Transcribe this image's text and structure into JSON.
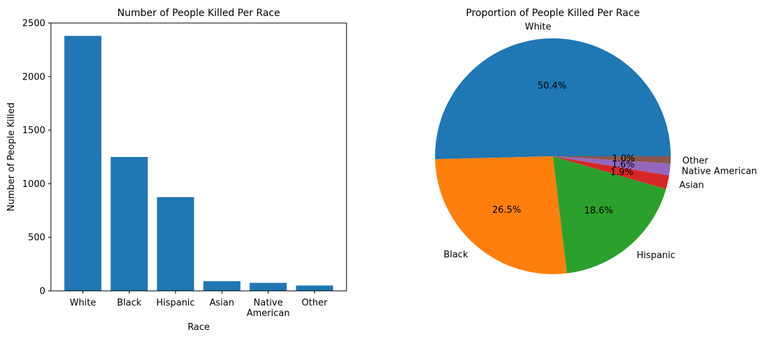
{
  "chart_data": [
    {
      "type": "bar",
      "title": "Number of People Killed Per Race",
      "xlabel": "Race",
      "ylabel": "Number of People Killed",
      "categories": [
        "White",
        "Black",
        "Hispanic",
        "Asian",
        "Native\nAmerican",
        "Other"
      ],
      "values": [
        2380,
        1250,
        875,
        90,
        75,
        50
      ],
      "ylim": [
        0,
        2500
      ],
      "yticks": [
        0,
        500,
        1000,
        1500,
        2000,
        2500
      ],
      "color": "#1f77b4",
      "grid": false
    },
    {
      "type": "pie",
      "title": "Proportion of People Killed Per Race",
      "labels": [
        "White",
        "Black",
        "Hispanic",
        "Asian",
        "Native American",
        "Other"
      ],
      "values": [
        50.4,
        26.5,
        18.6,
        1.9,
        1.6,
        1.0
      ],
      "autopct_labels": [
        "50.4%",
        "26.5%",
        "18.6%",
        "1.9%",
        "1.6%",
        "1.0%"
      ],
      "colors": [
        "#1f77b4",
        "#ff7f0e",
        "#2ca02c",
        "#d62728",
        "#9467bd",
        "#8c564b"
      ]
    }
  ]
}
